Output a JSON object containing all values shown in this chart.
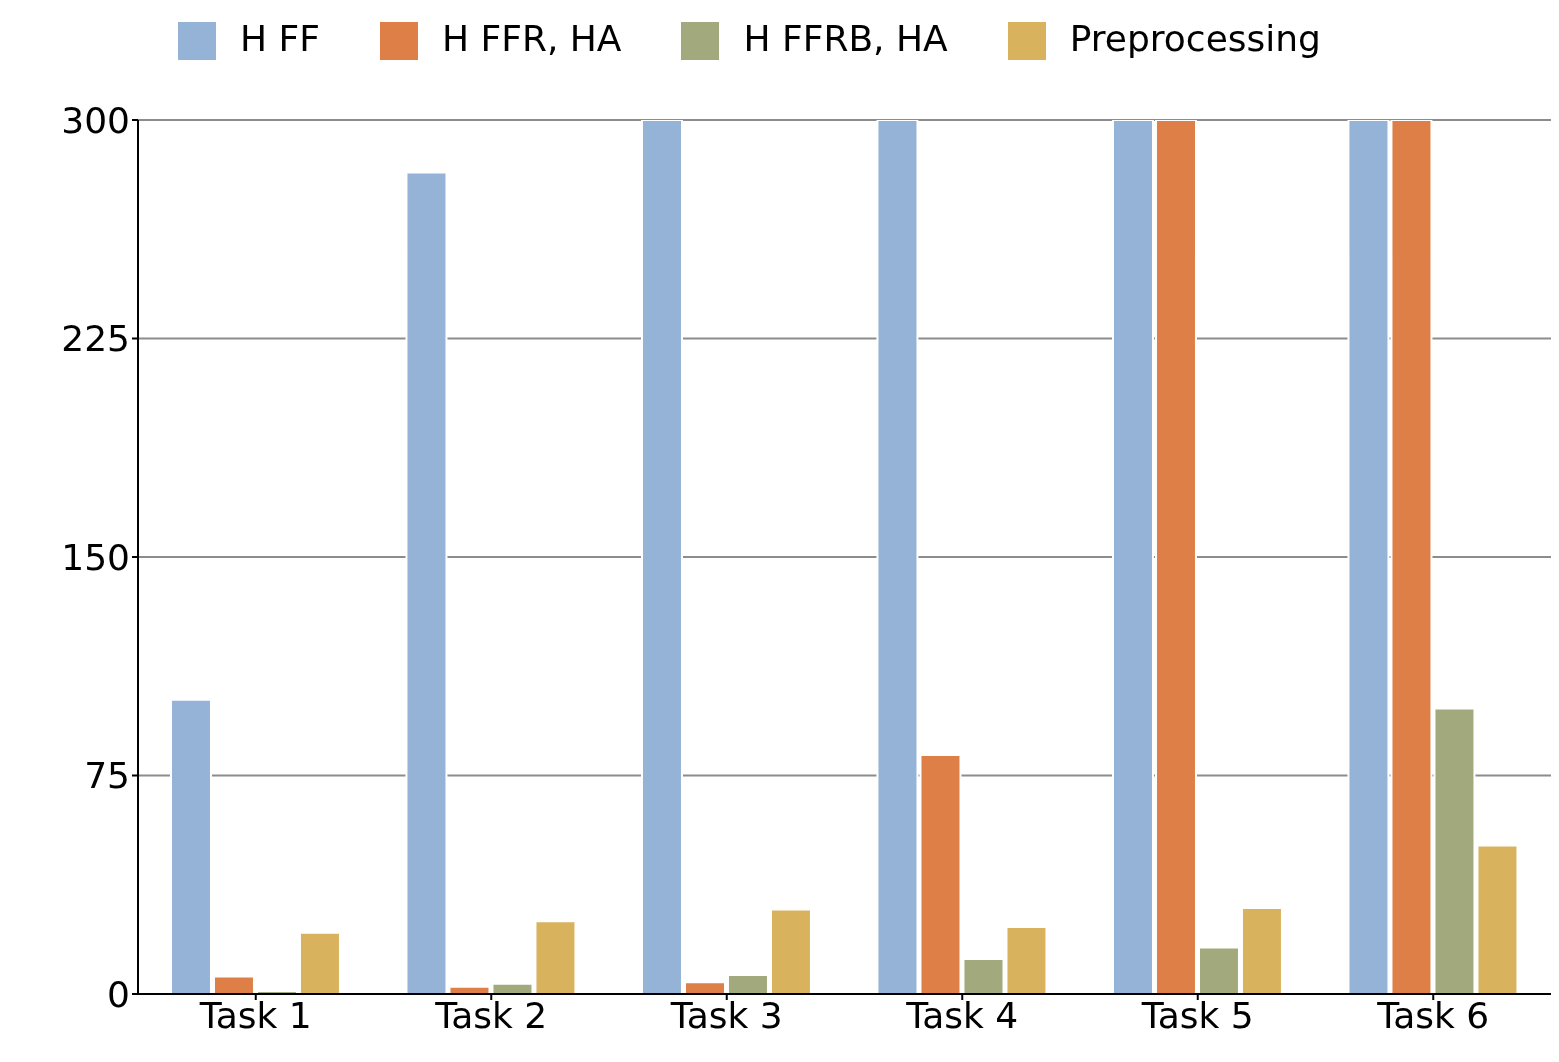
{
  "chart_data": {
    "type": "bar",
    "categories": [
      "Task 1",
      "Task 2",
      "Task 3",
      "Task 4",
      "Task 5",
      "Task 6"
    ],
    "series": [
      {
        "name": "H FF",
        "color": "#95b3d7",
        "values": [
          101,
          282,
          300,
          300,
          300,
          300
        ]
      },
      {
        "name": "H FFR, HA",
        "color": "#dd7f47",
        "values": [
          6,
          2.5,
          4,
          82,
          300,
          300
        ]
      },
      {
        "name": "H FFRB, HA",
        "color": "#a2a97c",
        "values": [
          1,
          3.5,
          6.5,
          12,
          16,
          98
        ]
      },
      {
        "name": "Preprocessing",
        "color": "#d9b25e",
        "values": [
          21,
          25,
          29,
          23,
          29.5,
          51
        ]
      }
    ],
    "ylim": [
      0,
      300
    ],
    "yticks": [
      0,
      75,
      150,
      225,
      300
    ],
    "grid": "y",
    "legend": "top"
  }
}
